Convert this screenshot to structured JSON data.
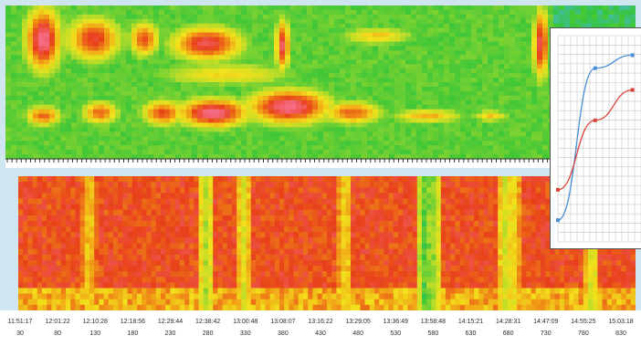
{
  "chart_data": [
    {
      "type": "heatmap",
      "title": "",
      "xlabel": "",
      "ylabel": "",
      "grid": false,
      "colorscale": [
        "#4fb8e6",
        "#35c53a",
        "#b5dc2a",
        "#f2e11c",
        "#f09a16",
        "#e8401a",
        "#f46b84"
      ],
      "rows": 8,
      "hotspots": [
        {
          "x": 0.06,
          "y": 0.22,
          "rx": 0.03,
          "ry": 0.22,
          "v": 1.0
        },
        {
          "x": 0.14,
          "y": 0.22,
          "rx": 0.045,
          "ry": 0.15,
          "v": 0.85
        },
        {
          "x": 0.22,
          "y": 0.22,
          "rx": 0.025,
          "ry": 0.12,
          "v": 0.8
        },
        {
          "x": 0.32,
          "y": 0.25,
          "rx": 0.06,
          "ry": 0.12,
          "v": 0.9
        },
        {
          "x": 0.44,
          "y": 0.26,
          "rx": 0.012,
          "ry": 0.18,
          "v": 0.9
        },
        {
          "x": 0.59,
          "y": 0.2,
          "rx": 0.06,
          "ry": 0.06,
          "v": 0.55
        },
        {
          "x": 0.85,
          "y": 0.25,
          "rx": 0.013,
          "ry": 0.25,
          "v": 0.9
        },
        {
          "x": 0.06,
          "y": 0.72,
          "rx": 0.03,
          "ry": 0.07,
          "v": 0.75
        },
        {
          "x": 0.15,
          "y": 0.7,
          "rx": 0.03,
          "ry": 0.08,
          "v": 0.75
        },
        {
          "x": 0.25,
          "y": 0.7,
          "rx": 0.035,
          "ry": 0.09,
          "v": 0.8
        },
        {
          "x": 0.33,
          "y": 0.7,
          "rx": 0.06,
          "ry": 0.1,
          "v": 1.0
        },
        {
          "x": 0.45,
          "y": 0.66,
          "rx": 0.07,
          "ry": 0.12,
          "v": 1.0
        },
        {
          "x": 0.55,
          "y": 0.7,
          "rx": 0.05,
          "ry": 0.08,
          "v": 0.75
        },
        {
          "x": 0.67,
          "y": 0.72,
          "rx": 0.06,
          "ry": 0.05,
          "v": 0.6
        },
        {
          "x": 0.77,
          "y": 0.72,
          "rx": 0.03,
          "ry": 0.04,
          "v": 0.55
        },
        {
          "x": 0.35,
          "y": 0.45,
          "rx": 0.12,
          "ry": 0.08,
          "v": 0.5
        }
      ],
      "cold_columns": [
        {
          "x": 0.305,
          "v": 0.25
        },
        {
          "x": 0.365,
          "v": 0.35
        },
        {
          "x": 0.66,
          "v": 0.1
        },
        {
          "x": 0.67,
          "v": 0.15
        },
        {
          "x": 0.79,
          "v": 0.3
        },
        {
          "x": 0.8,
          "v": 0.35
        },
        {
          "x": 0.93,
          "v": 0.3
        },
        {
          "x": 0.115,
          "v": 0.45
        },
        {
          "x": 0.53,
          "v": 0.4
        }
      ]
    },
    {
      "type": "heatmap",
      "title": "",
      "xlabel": "",
      "ylabel": "",
      "grid": false,
      "x_tick_labels_top": [
        "11:51:17",
        "12:01:22",
        "12:10:28",
        "12:18:56",
        "12:29:44",
        "12:38:42",
        "13:00:48",
        "13:08:07",
        "13:16:22",
        "13:29:05",
        "13:36:49",
        "13:58:48",
        "14:15:21",
        "14:28:31",
        "14:47:09",
        "14:55:25",
        "15:03:18"
      ],
      "x_tick_labels_bottom": [
        "30",
        "80",
        "130",
        "180",
        "230",
        "280",
        "330",
        "380",
        "430",
        "480",
        "530",
        "580",
        "630",
        "680",
        "730",
        "780",
        "830"
      ]
    },
    {
      "type": "line",
      "title": "",
      "xlabel": "",
      "ylabel": "",
      "grid": true,
      "x": [
        0,
        1,
        2
      ],
      "series": [
        {
          "color": "#4a8fd6",
          "values": [
            1.0,
            8.0,
            8.6
          ]
        },
        {
          "color": "#d8453a",
          "values": [
            2.4,
            5.6,
            7.0
          ]
        }
      ],
      "xlim": [
        0,
        2.4
      ],
      "ylim": [
        0,
        9.5
      ]
    }
  ]
}
